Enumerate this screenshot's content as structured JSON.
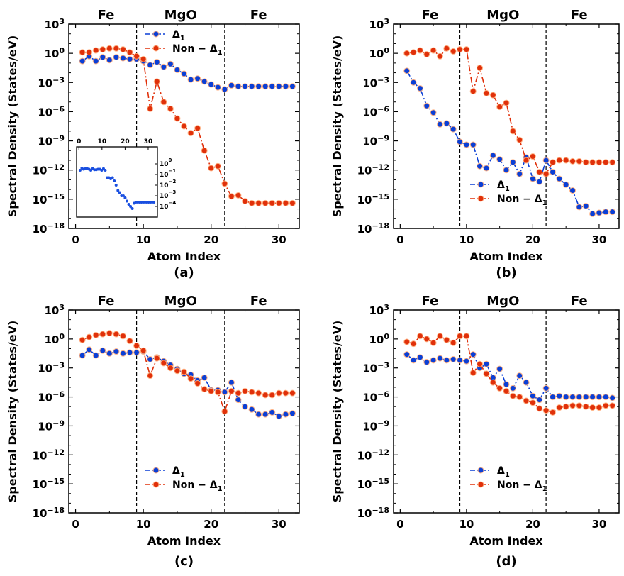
{
  "chart_data": [
    {
      "type": "line",
      "panel_label": "(a)",
      "xlabel": "Atom Index",
      "ylabel": "Spectral Density (States/eV)",
      "xlim": [
        -1,
        33
      ],
      "ylim_exp": [
        -18,
        3
      ],
      "xticks": [
        "0",
        "10",
        "20",
        "30"
      ],
      "yticks": [
        3,
        0,
        -3,
        -6,
        -9,
        -12,
        -15,
        -18
      ],
      "regions": [
        {
          "label": "Fe",
          "center": 4.5
        },
        {
          "label": "MgO",
          "center": 15.5
        },
        {
          "label": "Fe",
          "center": 27.0
        }
      ],
      "boundaries": [
        9,
        22
      ],
      "legend_position": "top-right",
      "series": [
        {
          "name": "Δ1",
          "color": "#0a3fd6",
          "log10_values": [
            -0.8,
            -0.3,
            -0.8,
            -0.4,
            -0.7,
            -0.4,
            -0.5,
            -0.6,
            -0.6,
            -0.8,
            -1.2,
            -0.9,
            -1.4,
            -1.1,
            -1.7,
            -2.1,
            -2.7,
            -2.6,
            -2.9,
            -3.2,
            -3.5,
            -3.7,
            -3.3,
            -3.4,
            -3.4,
            -3.4,
            -3.4,
            -3.4,
            -3.4,
            -3.4,
            -3.4,
            -3.4
          ]
        },
        {
          "name": "Non-Δ1",
          "color": "#e0300a",
          "log10_values": [
            0.1,
            0.1,
            0.3,
            0.4,
            0.5,
            0.5,
            0.4,
            0.1,
            -0.3,
            -0.6,
            -5.7,
            -2.9,
            -5.0,
            -5.7,
            -6.7,
            -7.5,
            -8.2,
            -7.7,
            -10.0,
            -11.8,
            -11.6,
            -13.4,
            -14.7,
            -14.6,
            -15.2,
            -15.4,
            -15.4,
            -15.4,
            -15.4,
            -15.4,
            -15.4,
            -15.4
          ]
        }
      ],
      "inset": {
        "xticks": [
          "0",
          "10",
          "20",
          "30"
        ],
        "yticks": [
          0,
          -1,
          -2,
          -3,
          -4
        ],
        "log10_values": [
          -0.6,
          -0.4,
          -0.5,
          -0.45,
          -0.45,
          -0.5,
          -0.6,
          -0.45,
          -0.55,
          -0.55,
          -0.5,
          -0.5,
          -0.6,
          -0.45,
          -0.6,
          -1.3,
          -1.3,
          -1.4,
          -1.3,
          -1.6,
          -2.0,
          -2.5,
          -2.7,
          -3.0,
          -3.0,
          -3.2,
          -3.5,
          -3.8,
          -4.0,
          -4.2,
          -3.7,
          -3.6,
          -3.6,
          -3.6,
          -3.6,
          -3.6,
          -3.6,
          -3.6,
          -3.6,
          -3.6,
          -3.6,
          -3.6
        ]
      }
    },
    {
      "type": "line",
      "panel_label": "(b)",
      "xlabel": "Atom Index",
      "ylabel": "Spectral Density (States/eV)",
      "xlim": [
        -1,
        33
      ],
      "ylim_exp": [
        -18,
        3
      ],
      "xticks": [
        "0",
        "10",
        "20",
        "30"
      ],
      "yticks": [
        3,
        0,
        -3,
        -6,
        -9,
        -12,
        -15,
        -18
      ],
      "regions": [
        {
          "label": "Fe",
          "center": 4.5
        },
        {
          "label": "MgO",
          "center": 15.5
        },
        {
          "label": "Fe",
          "center": 27.0
        }
      ],
      "boundaries": [
        9,
        22
      ],
      "legend_position": "lower-center",
      "series": [
        {
          "name": "Δ1",
          "color": "#0a3fd6",
          "log10_values": [
            -1.8,
            -3.0,
            -3.6,
            -5.4,
            -6.1,
            -7.3,
            -7.2,
            -7.8,
            -9.1,
            -9.4,
            -9.4,
            -11.6,
            -11.8,
            -10.5,
            -10.9,
            -12.0,
            -11.2,
            -12.4,
            -10.7,
            -12.9,
            -13.2,
            -11.0,
            -12.2,
            -12.9,
            -13.5,
            -14.1,
            -15.8,
            -15.7,
            -16.5,
            -16.4,
            -16.3,
            -16.3
          ]
        },
        {
          "name": "Non-Δ1",
          "color": "#e0300a",
          "log10_values": [
            0.0,
            0.1,
            0.3,
            -0.1,
            0.3,
            -0.3,
            0.5,
            0.2,
            0.4,
            0.4,
            -3.9,
            -1.5,
            -4.1,
            -4.3,
            -5.5,
            -5.1,
            -8.0,
            -8.9,
            -11.0,
            -10.6,
            -12.2,
            -12.4,
            -11.2,
            -11.0,
            -11.0,
            -11.1,
            -11.1,
            -11.2,
            -11.2,
            -11.2,
            -11.2,
            -11.2
          ]
        }
      ]
    },
    {
      "type": "line",
      "panel_label": "(c)",
      "xlabel": "Atom Index",
      "ylabel": "Spectral Density (States/eV)",
      "xlim": [
        -1,
        33
      ],
      "ylim_exp": [
        -18,
        3
      ],
      "xticks": [
        "0",
        "10",
        "20",
        "30"
      ],
      "yticks": [
        3,
        0,
        -3,
        -6,
        -9,
        -12,
        -15,
        -18
      ],
      "regions": [
        {
          "label": "Fe",
          "center": 4.5
        },
        {
          "label": "MgO",
          "center": 15.5
        },
        {
          "label": "Fe",
          "center": 27.0
        }
      ],
      "boundaries": [
        9,
        22
      ],
      "legend_position": "lower-center",
      "series": [
        {
          "name": "Δ1",
          "color": "#0a3fd6",
          "log10_values": [
            -1.7,
            -1.1,
            -1.7,
            -1.2,
            -1.5,
            -1.3,
            -1.5,
            -1.4,
            -1.4,
            -1.3,
            -2.1,
            -1.9,
            -2.3,
            -2.7,
            -3.1,
            -3.6,
            -3.7,
            -4.3,
            -4.0,
            -5.3,
            -5.3,
            -5.5,
            -4.5,
            -6.3,
            -7.0,
            -7.3,
            -7.8,
            -7.8,
            -7.6,
            -8.0,
            -7.8,
            -7.7
          ]
        },
        {
          "name": "Non-Δ1",
          "color": "#e0300a",
          "log10_values": [
            -0.1,
            0.2,
            0.4,
            0.5,
            0.6,
            0.5,
            0.3,
            -0.2,
            -0.7,
            -1.2,
            -3.8,
            -2.0,
            -2.5,
            -3.0,
            -3.3,
            -3.4,
            -4.1,
            -4.6,
            -5.2,
            -5.4,
            -5.5,
            -7.5,
            -5.4,
            -5.6,
            -5.4,
            -5.5,
            -5.6,
            -5.8,
            -5.8,
            -5.6,
            -5.6,
            -5.6
          ]
        }
      ]
    },
    {
      "type": "line",
      "panel_label": "(d)",
      "xlabel": "Atom Index",
      "ylabel": "Spectral Density (States/eV)",
      "xlim": [
        -1,
        33
      ],
      "ylim_exp": [
        -18,
        3
      ],
      "xticks": [
        "0",
        "10",
        "20",
        "30"
      ],
      "yticks": [
        3,
        0,
        -3,
        -6,
        -9,
        -12,
        -15,
        -18
      ],
      "regions": [
        {
          "label": "Fe",
          "center": 4.5
        },
        {
          "label": "MgO",
          "center": 15.5
        },
        {
          "label": "Fe",
          "center": 27.0
        }
      ],
      "boundaries": [
        9,
        22
      ],
      "legend_position": "lower-center",
      "series": [
        {
          "name": "Δ1",
          "color": "#0a3fd6",
          "log10_values": [
            -1.6,
            -2.2,
            -1.9,
            -2.4,
            -2.2,
            -2.0,
            -2.2,
            -2.1,
            -2.2,
            -2.3,
            -1.6,
            -3.0,
            -2.6,
            -4.0,
            -3.1,
            -4.7,
            -5.1,
            -3.8,
            -4.5,
            -5.9,
            -6.3,
            -5.1,
            -6.0,
            -5.9,
            -6.0,
            -6.0,
            -6.0,
            -6.0,
            -6.0,
            -6.0,
            -6.0,
            -6.1
          ]
        },
        {
          "name": "Non-Δ1",
          "color": "#e0300a",
          "log10_values": [
            -0.3,
            -0.5,
            0.3,
            0.0,
            -0.4,
            0.3,
            -0.1,
            -0.4,
            0.3,
            0.3,
            -3.5,
            -2.6,
            -3.6,
            -4.5,
            -5.1,
            -5.4,
            -5.9,
            -6.0,
            -6.4,
            -6.6,
            -7.2,
            -7.4,
            -7.6,
            -7.1,
            -7.0,
            -6.9,
            -6.9,
            -7.0,
            -7.1,
            -7.1,
            -6.9,
            -6.9
          ]
        }
      ]
    }
  ]
}
